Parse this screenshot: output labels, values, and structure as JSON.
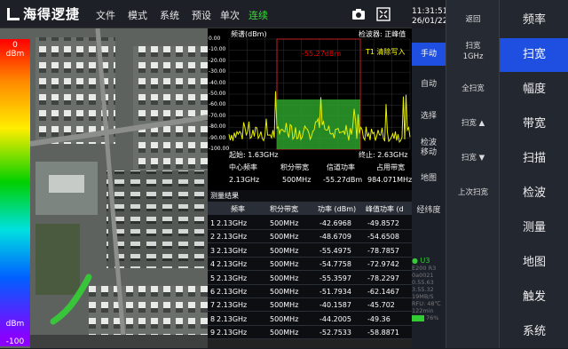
{
  "brand": "海得逻捷",
  "menu": [
    "文件",
    "模式",
    "系统",
    "预设",
    "单次",
    "连续"
  ],
  "menu_active": 5,
  "clock": {
    "time": "11:31:51",
    "date": "26/01/22"
  },
  "map": {
    "label": "地图",
    "scale_top": "0",
    "scale_top_unit": "dBm",
    "scale_bottom_unit": "dBm",
    "scale_bottom": "-100"
  },
  "spectrum": {
    "ylabel": "频谱(dBm)",
    "detector": "检波器: 正峰值",
    "marker_value": "-55.27dBm",
    "marker_label": "T1 清除写入",
    "start": "起始: 1.63GHz",
    "stop": "终止: 2.63GHz",
    "yticks": [
      "0.00",
      "-10.00",
      "-20.00",
      "-30.00",
      "-40.00",
      "-50.00",
      "-60.00",
      "-70.00",
      "-80.00",
      "-90.00",
      "-100.00"
    ],
    "summary_headers": [
      "中心频率",
      "积分带宽",
      "信道功率",
      "占用带宽"
    ],
    "summary_values": [
      "2.13GHz",
      "500MHz",
      "-55.27dBm",
      "984.071MHz"
    ]
  },
  "measure": {
    "title": "测量结果",
    "headers": [
      "频率",
      "积分带宽",
      "功率 (dBm)",
      "峰值功率 (d"
    ],
    "rows": [
      [
        "1",
        "2.13GHz",
        "500MHz",
        "-42.6968",
        "-49.8572"
      ],
      [
        "2",
        "2.13GHz",
        "500MHz",
        "-48.6709",
        "-54.6508"
      ],
      [
        "3",
        "2.13GHz",
        "500MHz",
        "-55.4975",
        "-78.7857"
      ],
      [
        "4",
        "2.13GHz",
        "500MHz",
        "-54.7758",
        "-72.9742"
      ],
      [
        "5",
        "2.13GHz",
        "500MHz",
        "-55.3597",
        "-78.2297"
      ],
      [
        "6",
        "2.13GHz",
        "500MHz",
        "-51.7934",
        "-62.1467"
      ],
      [
        "7",
        "2.13GHz",
        "500MHz",
        "-40.1587",
        "-45.702"
      ],
      [
        "8",
        "2.13GHz",
        "500MHz",
        "-44.2005",
        "-49.36"
      ],
      [
        "9",
        "2.13GHz",
        "500MHz",
        "-52.7533",
        "-58.8871"
      ]
    ]
  },
  "modes": [
    "手动",
    "自动",
    "选择",
    "检波\n移动",
    "地图",
    "经纬度"
  ],
  "mode_selected": 0,
  "soft": [
    "返回",
    "扫宽\n1GHz",
    "全扫宽",
    "扫宽 ▲",
    "扫宽 ▼",
    "上次扫宽"
  ],
  "functions": [
    "频率",
    "扫宽",
    "幅度",
    "带宽",
    "扫描",
    "检波",
    "测量",
    "地图",
    "触发",
    "系统"
  ],
  "function_selected": 1,
  "status": {
    "gps": "U3",
    "lines": [
      "E200 R3",
      "0a0021",
      "0.55.63",
      "3.55.32",
      "19MB/S",
      "RFU: 48℃",
      "122min"
    ],
    "battery": "76%"
  }
}
